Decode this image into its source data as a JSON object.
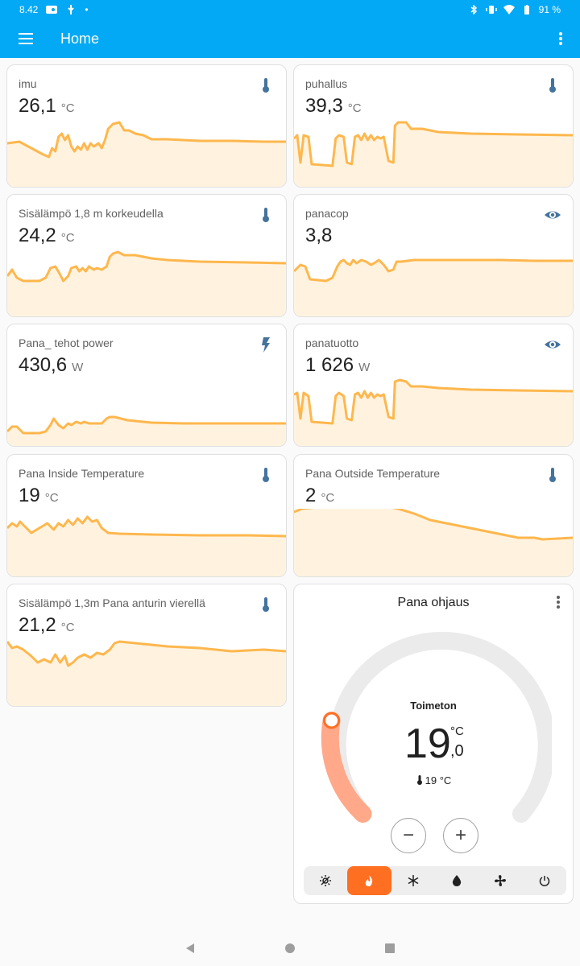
{
  "status_bar": {
    "time": "8.42",
    "battery": "91 %"
  },
  "app_bar": {
    "title": "Home"
  },
  "colors": {
    "accent": "#03a9f4",
    "sparkline": "#ffb74d",
    "spark_fill": "#fff3e0",
    "icon": "#44739e",
    "heat_mode": "#ff6f22",
    "dial_active": "#ffa98a"
  },
  "cards": [
    {
      "name": "imu",
      "value": "26,1",
      "unit": "°C",
      "icon": "thermometer-icon"
    },
    {
      "name": "puhallus",
      "value": "39,3",
      "unit": "°C",
      "icon": "thermometer-icon"
    },
    {
      "name": "Sisälämpö 1,8 m korkeudella",
      "value": "24,2",
      "unit": "°C",
      "icon": "thermometer-icon"
    },
    {
      "name": "panacop",
      "value": "3,8",
      "unit": "",
      "icon": "eye-icon"
    },
    {
      "name": "Pana_ tehot power",
      "value": "430,6",
      "unit": "W",
      "icon": "flash-icon"
    },
    {
      "name": "panatuotto",
      "value": "1 626",
      "unit": "W",
      "icon": "eye-icon"
    },
    {
      "name": "Pana Inside Temperature",
      "value": "19",
      "unit": "°C",
      "icon": "thermometer-icon"
    },
    {
      "name": "Pana Outside Temperature",
      "value": "2",
      "unit": "°C",
      "icon": "thermometer-icon"
    },
    {
      "name": "Sisälämpö 1,3m Pana anturin vierellä",
      "value": "21,2",
      "unit": "°C",
      "icon": "thermometer-icon"
    }
  ],
  "thermostat": {
    "title": "Pana ohjaus",
    "state": "Toimeton",
    "target_integer": "19",
    "target_decimal": ",0",
    "unit": "°C",
    "current": "19 °C",
    "minus_label": "−",
    "plus_label": "+",
    "modes": [
      "auto-mode-icon",
      "heat-mode-icon",
      "cool-mode-icon",
      "dry-mode-icon",
      "fan-mode-icon",
      "power-off-icon"
    ],
    "active_mode": "heat-mode-icon"
  }
}
